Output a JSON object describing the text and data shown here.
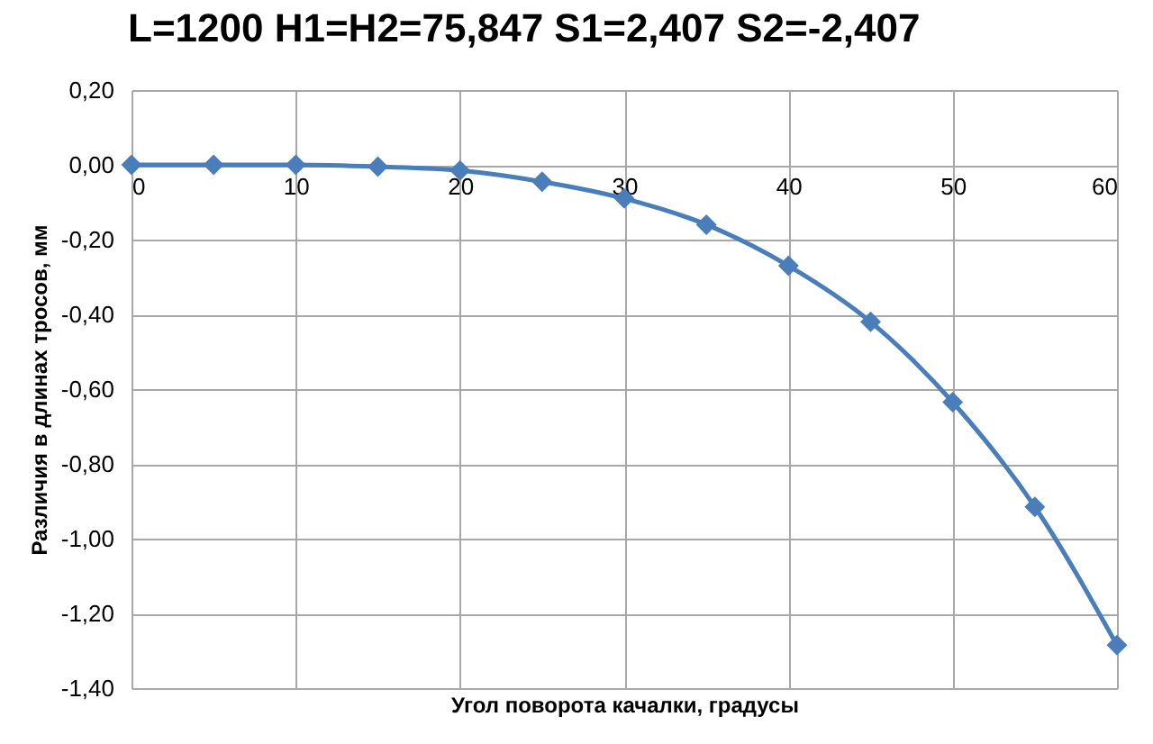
{
  "chart_data": {
    "type": "line",
    "title": "L=1200   H1=H2=75,847   S1=2,407   S2=-2,407",
    "xlabel": "Угол поворота качалки, градусы",
    "ylabel": "Различия в длинах тросов, мм",
    "x": [
      0,
      5,
      10,
      15,
      20,
      25,
      30,
      35,
      40,
      45,
      50,
      55,
      60
    ],
    "series": [
      {
        "color": "#4a7ebb",
        "values": [
          0,
          0,
          0,
          -0.005,
          -0.015,
          -0.045,
          -0.09,
          -0.16,
          -0.27,
          -0.42,
          -0.635,
          -0.915,
          -1.285
        ]
      }
    ],
    "xlim": [
      0,
      60
    ],
    "xticks": [
      0,
      10,
      20,
      30,
      40,
      50,
      60
    ],
    "ylim": [
      -1.4,
      0.2
    ],
    "yticks": [
      {
        "value": 0.2,
        "label": "0,20"
      },
      {
        "value": 0,
        "label": "0,00"
      },
      {
        "value": -0.2,
        "label": "-0,20"
      },
      {
        "value": -0.4,
        "label": "-0,40"
      },
      {
        "value": -0.6,
        "label": "-0,60"
      },
      {
        "value": -0.8,
        "label": "-0,80"
      },
      {
        "value": -1.0,
        "label": "-1,00"
      },
      {
        "value": -1.2,
        "label": "-1,20"
      },
      {
        "value": -1.4,
        "label": "-1,40"
      }
    ],
    "grid": true,
    "marker": "diamond",
    "line_style": "solid"
  }
}
